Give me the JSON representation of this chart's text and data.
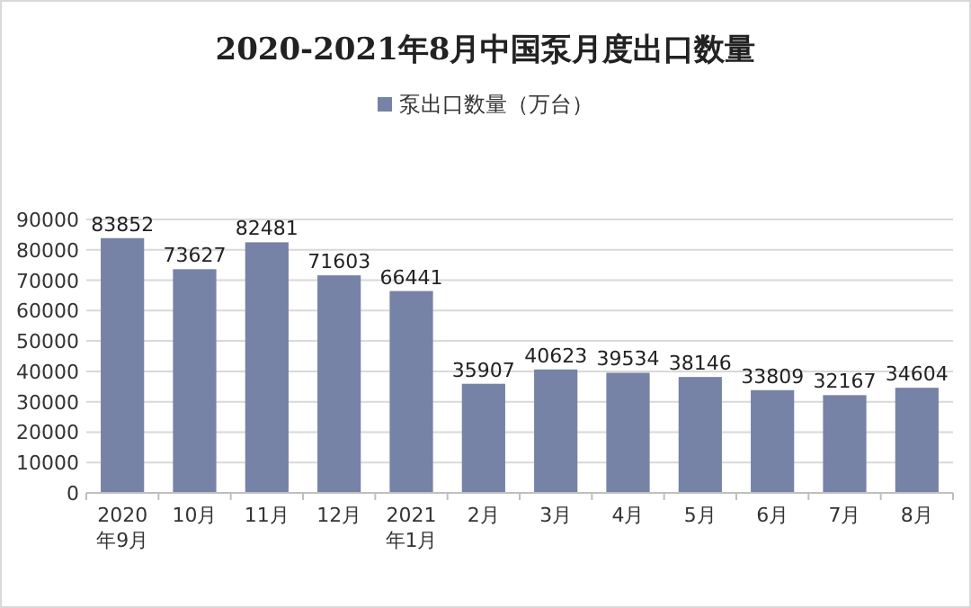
{
  "chart_data": {
    "type": "bar",
    "title": "2020-2021年8月中国泵月度出口数量",
    "categories": [
      "2020年9月",
      "10月",
      "11月",
      "12月",
      "2021年1月",
      "2月",
      "3月",
      "4月",
      "5月",
      "6月",
      "7月",
      "8月"
    ],
    "series": [
      {
        "name": "泵出口数量（万台）",
        "color": "#7682a6",
        "values": [
          83852,
          73627,
          82481,
          71603,
          66441,
          35907,
          40623,
          39534,
          38146,
          33809,
          32167,
          34604
        ]
      }
    ],
    "ylim": [
      0,
      90000
    ],
    "yticks": [
      0,
      10000,
      20000,
      30000,
      40000,
      50000,
      60000,
      70000,
      80000,
      90000
    ],
    "grid": "y",
    "legend": "top",
    "data_labels": true
  }
}
